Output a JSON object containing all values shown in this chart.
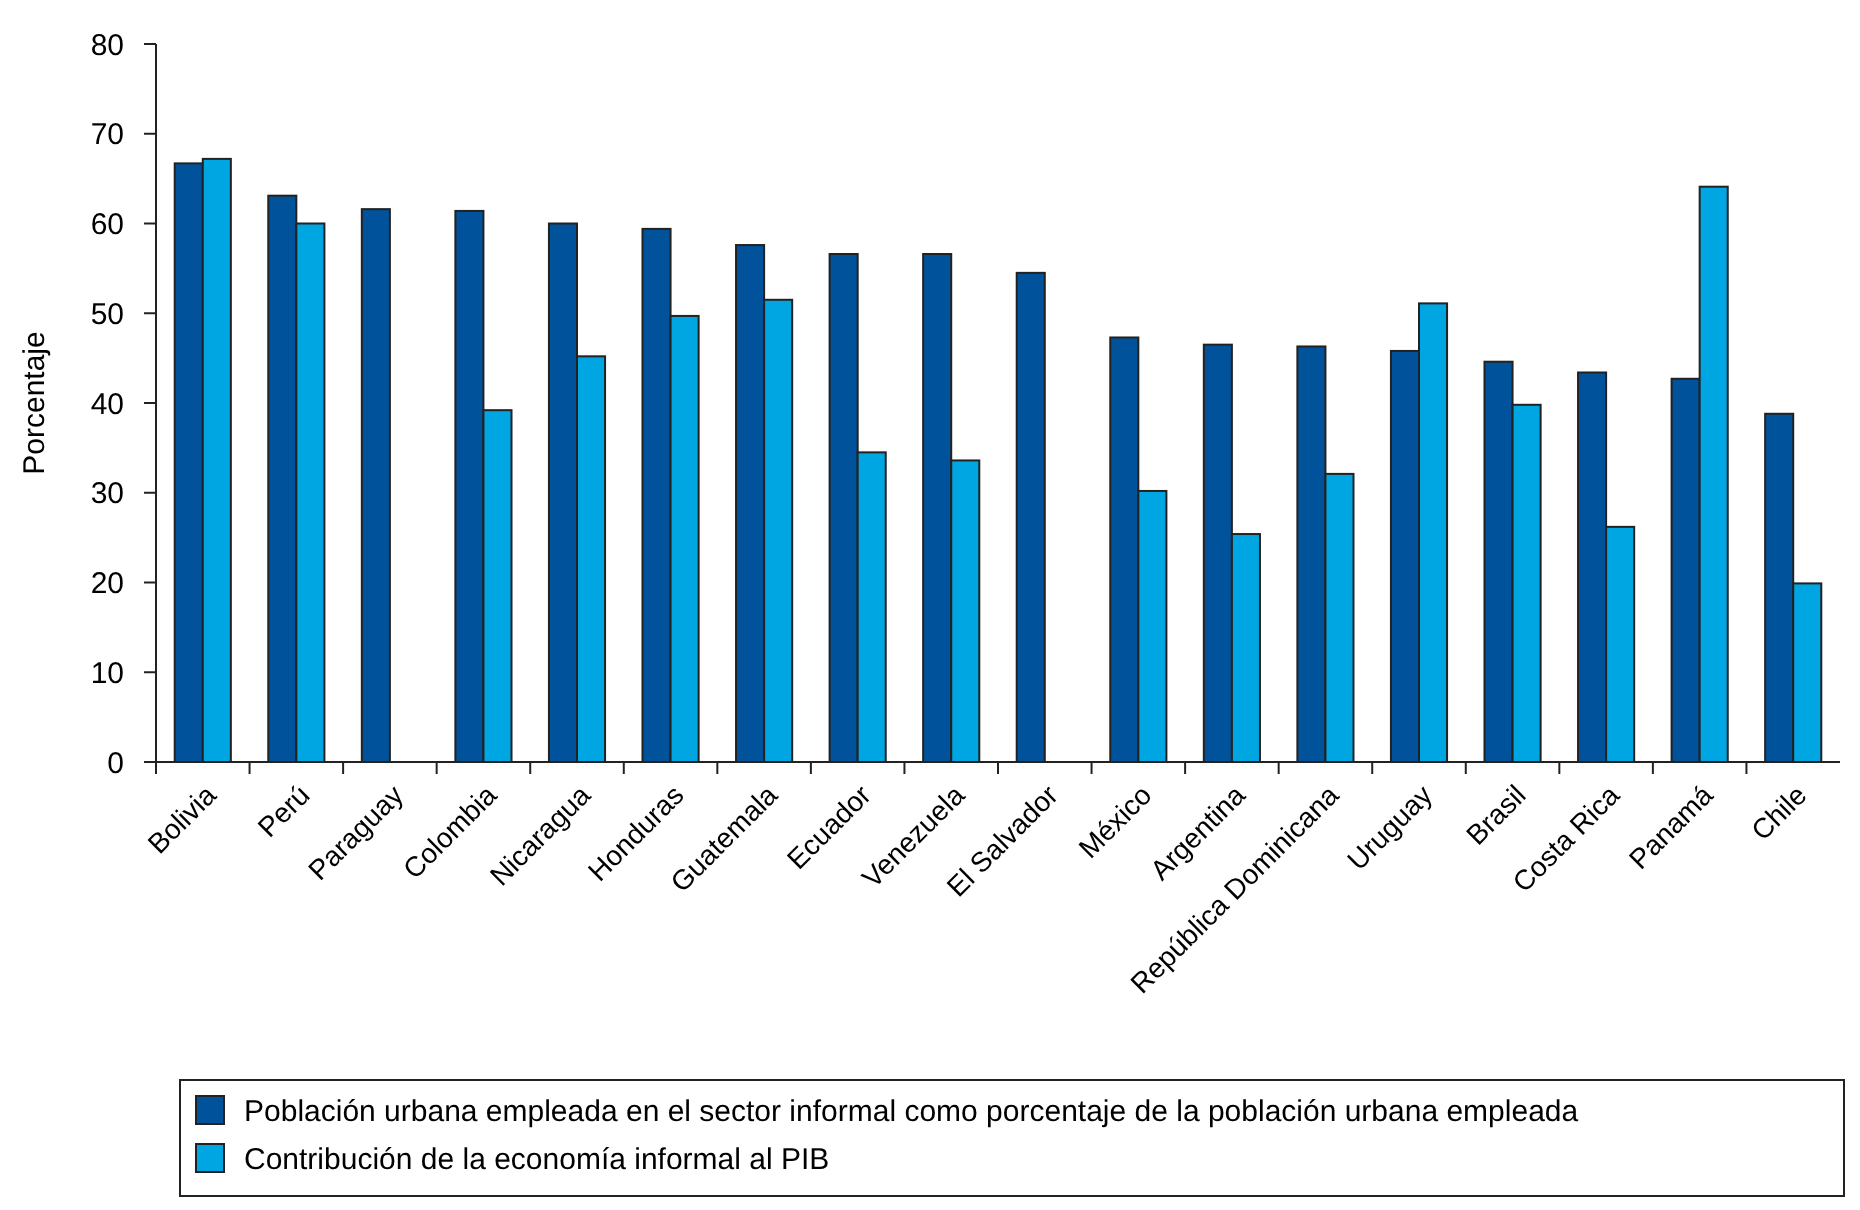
{
  "chart_data": {
    "type": "bar",
    "ylabel": "Porcentaje",
    "categories": [
      "Bolivia",
      "Perú",
      "Paraguay",
      "Colombia",
      "Nicaragua",
      "Honduras",
      "Guatemala",
      "Ecuador",
      "Venezuela",
      "El Salvador",
      "México",
      "Argentina",
      "República Dominicana",
      "Uruguay",
      "Brasil",
      "Costa Rica",
      "Panamá",
      "Chile"
    ],
    "series": [
      {
        "name": "Población urbana empleada en el sector informal como porcentaje de la población urbana empleada",
        "color": "#00539b",
        "values": [
          66.7,
          63.1,
          61.6,
          61.4,
          60,
          59.4,
          57.6,
          56.6,
          56.6,
          54.5,
          47.3,
          46.5,
          46.3,
          45.8,
          44.6,
          43.4,
          42.7,
          38.8
        ]
      },
      {
        "name": "Contribución de la economía informal al PIB",
        "color": "#00a6e2",
        "values": [
          67.2,
          60,
          null,
          39.2,
          45.2,
          49.7,
          51.5,
          34.5,
          33.6,
          null,
          30.2,
          25.4,
          32.1,
          51.1,
          39.8,
          26.2,
          64.1,
          19.9
        ]
      }
    ],
    "ylim": [
      0,
      80
    ],
    "yticks": [
      0,
      10,
      20,
      30,
      40,
      50,
      60,
      70,
      80
    ],
    "grid": false,
    "legend": "bottom"
  }
}
